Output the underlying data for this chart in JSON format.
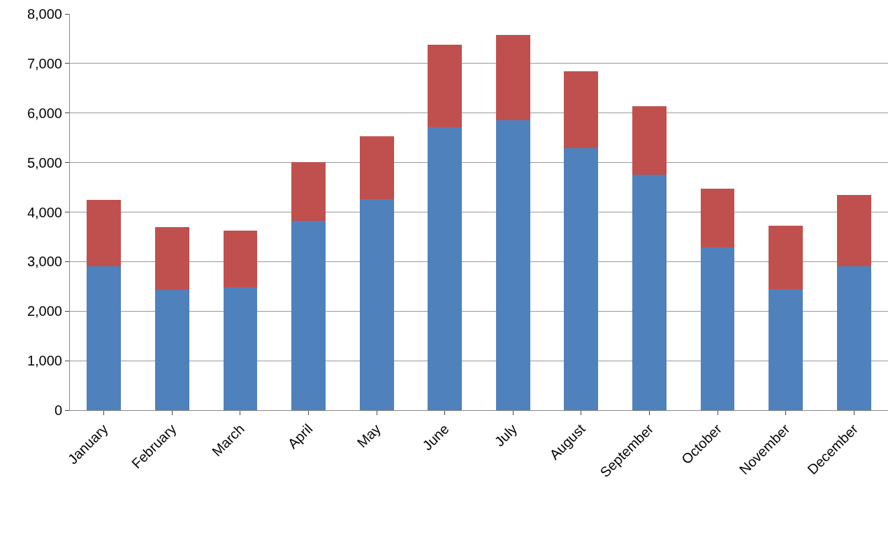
{
  "chart_data": {
    "type": "bar",
    "stacked": true,
    "categories": [
      "January",
      "February",
      "March",
      "April",
      "May",
      "June",
      "July",
      "August",
      "September",
      "October",
      "November",
      "December"
    ],
    "series": [
      {
        "color": "#4f81bd",
        "values": [
          2900,
          2430,
          2480,
          3820,
          4260,
          5720,
          5860,
          5290,
          4750,
          3290,
          2440,
          2910
        ]
      },
      {
        "color": "#c0504d",
        "values": [
          1340,
          1260,
          1150,
          1190,
          1270,
          1660,
          1720,
          1550,
          1390,
          1180,
          1280,
          1430
        ]
      }
    ],
    "ylim": [
      0,
      8000
    ],
    "yticks": [
      {
        "value": 0,
        "label": "0"
      },
      {
        "value": 1000,
        "label": "1,000"
      },
      {
        "value": 2000,
        "label": "2,000"
      },
      {
        "value": 3000,
        "label": "3,000"
      },
      {
        "value": 4000,
        "label": "4,000"
      },
      {
        "value": 5000,
        "label": "5,000"
      },
      {
        "value": 6000,
        "label": "6,000"
      },
      {
        "value": 7000,
        "label": "7,000"
      },
      {
        "value": 8000,
        "label": "8,000"
      }
    ],
    "grid": "y"
  }
}
